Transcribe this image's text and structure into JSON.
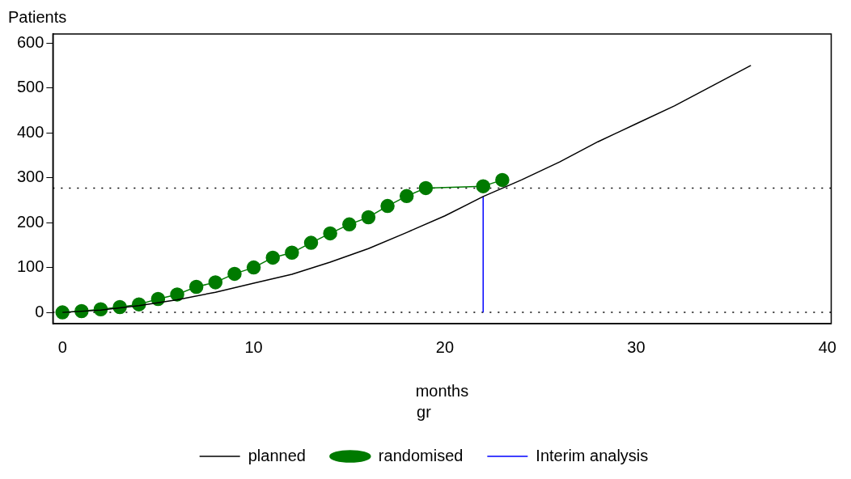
{
  "chart_data": {
    "type": "line",
    "xlabel": "months",
    "ylabel": "Patients",
    "legend_title": "gr",
    "legend": "bottom",
    "grid": false,
    "xlim": [
      -0.5,
      40.2
    ],
    "xticks": [
      0,
      10,
      20,
      30,
      40
    ],
    "ylim": [
      -25,
      620
    ],
    "yticks": [
      0,
      100,
      200,
      300,
      400,
      500,
      600
    ],
    "series": [
      {
        "name": "planned",
        "color": "#000000",
        "marker": "none",
        "x": [
          0,
          2,
          4,
          6,
          8,
          10,
          12,
          14,
          16,
          18,
          20,
          22,
          24,
          26,
          28,
          30,
          32,
          34,
          36
        ],
        "values": [
          0,
          5,
          15,
          28,
          45,
          65,
          85,
          112,
          142,
          178,
          215,
          258,
          295,
          335,
          380,
          420,
          460,
          505,
          550
        ]
      },
      {
        "name": "randomised",
        "color": "#007a00",
        "marker": "circle",
        "x": [
          0,
          1,
          2,
          3,
          4,
          5,
          6,
          7,
          8,
          9,
          10,
          11,
          12,
          13,
          14,
          15,
          16,
          17,
          18,
          19,
          22,
          23
        ],
        "values": [
          0,
          3,
          7,
          12,
          18,
          30,
          40,
          57,
          67,
          86,
          100,
          122,
          133,
          155,
          176,
          196,
          212,
          237,
          259,
          277,
          281,
          295
        ]
      },
      {
        "name": "Interim analysis",
        "color": "#0000ff",
        "marker": "none",
        "x": [
          22,
          22
        ],
        "values": [
          0,
          258
        ]
      }
    ],
    "ref_lines": [
      {
        "axis": "y",
        "value": 277,
        "line_style": "dotted",
        "color": "#000000"
      },
      {
        "axis": "y",
        "value": 0,
        "line_style": "dotted",
        "color": "#000000"
      }
    ]
  }
}
